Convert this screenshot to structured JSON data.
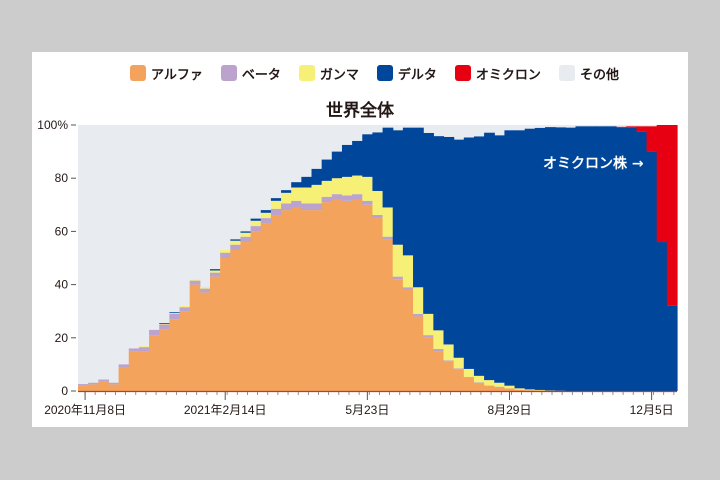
{
  "legend": [
    {
      "label": "アルファ",
      "color": "#f4a35c"
    },
    {
      "label": "ベータ",
      "color": "#bba3cd"
    },
    {
      "label": "ガンマ",
      "color": "#f7f077"
    },
    {
      "label": "デルタ",
      "color": "#00469b"
    },
    {
      "label": "オミクロン",
      "color": "#e60012"
    },
    {
      "label": "その他",
      "color": "#e8ebef"
    }
  ],
  "annotation": "オミクロン株 →",
  "chart_data": {
    "type": "bar",
    "stacked": true,
    "title": "世界全体",
    "xlabel": "",
    "ylabel": "",
    "ylim": [
      0,
      100
    ],
    "yticks": [
      "0",
      "20",
      "40",
      "60",
      "80",
      "100%"
    ],
    "xtick_labels": [
      "2020年11月8日",
      "2021年2月14日",
      "5月23日",
      "8月29日",
      "12月5日"
    ],
    "xtick_bar_index": [
      0.7,
      14.5,
      28.5,
      42.5,
      56.5
    ],
    "legend_position": "top",
    "grid": false,
    "series": [
      {
        "name": "アルファ",
        "color": "#f4a35c",
        "values": [
          2,
          2.5,
          3.5,
          2.5,
          9,
          15,
          15,
          21,
          23,
          27,
          30,
          40,
          37,
          43,
          50,
          53,
          56,
          60,
          63,
          66,
          68,
          69,
          68,
          68,
          71,
          72,
          71.5,
          72,
          70,
          65,
          57,
          42,
          38,
          28,
          20,
          15,
          11,
          8,
          5,
          3,
          2,
          1.5,
          1,
          0.5,
          0.3,
          0.2,
          0.1,
          0.1,
          0,
          0,
          0,
          0,
          0,
          0,
          0,
          0,
          0,
          0,
          0
        ]
      },
      {
        "name": "ベータ",
        "color": "#bba3cd",
        "values": [
          0.6,
          0.6,
          0.8,
          0.6,
          1,
          1,
          1.5,
          2,
          2,
          2,
          1.5,
          1.5,
          1.5,
          1.5,
          2,
          2,
          2,
          2,
          2,
          2.5,
          2.5,
          2.5,
          2.5,
          2.5,
          2,
          2,
          2,
          2,
          1.5,
          1.2,
          1,
          1,
          1,
          1,
          1,
          0.8,
          0.5,
          0.5,
          0.3,
          0.2,
          0.1,
          0.1,
          0,
          0,
          0,
          0,
          0,
          0,
          0,
          0,
          0,
          0,
          0,
          0,
          0,
          0,
          0,
          0,
          0
        ]
      },
      {
        "name": "ガンマ",
        "color": "#f7f077",
        "values": [
          0,
          0,
          0,
          0,
          0,
          0,
          0.3,
          0.2,
          0.2,
          0.3,
          0.4,
          0.4,
          0.6,
          0.8,
          1,
          1.5,
          1.5,
          2,
          2,
          3,
          4,
          5,
          6,
          7,
          6,
          6,
          7,
          7,
          9,
          9,
          11,
          12,
          12,
          10,
          8,
          7,
          6,
          4,
          3,
          2.5,
          2,
          1.5,
          1,
          0.5,
          0.3,
          0.2,
          0.1,
          0,
          0,
          0,
          0,
          0,
          0,
          0,
          0,
          0,
          0,
          0,
          0
        ]
      },
      {
        "name": "デルタ",
        "color": "#00469b",
        "values": [
          0,
          0,
          0,
          0,
          0,
          0,
          0,
          0,
          0.3,
          0.3,
          0,
          0,
          0,
          0.5,
          0,
          0.5,
          0.5,
          0.8,
          1,
          1,
          1,
          2,
          4,
          6,
          8,
          10,
          12,
          13,
          16,
          22,
          30,
          43,
          48,
          60,
          68,
          73,
          78,
          82,
          87,
          90,
          93,
          93,
          96,
          97,
          98,
          98.5,
          99,
          99,
          99,
          99.5,
          99.5,
          99.5,
          99.5,
          99,
          99,
          97.5,
          90,
          56,
          32
        ]
      },
      {
        "name": "オミクロン",
        "color": "#e60012",
        "values": [
          0,
          0,
          0,
          0,
          0,
          0,
          0,
          0,
          0,
          0,
          0,
          0,
          0,
          0,
          0,
          0,
          0,
          0,
          0,
          0,
          0,
          0,
          0,
          0,
          0,
          0,
          0,
          0,
          0,
          0,
          0,
          0,
          0,
          0,
          0,
          0,
          0,
          0,
          0,
          0,
          0,
          0,
          0,
          0,
          0,
          0,
          0,
          0,
          0,
          0,
          0,
          0,
          0,
          0.3,
          0.5,
          2,
          9.5,
          44,
          68
        ]
      }
    ],
    "other_series": {
      "name": "その他",
      "color": "#e8ebef",
      "note": "remainder to 100%"
    }
  }
}
